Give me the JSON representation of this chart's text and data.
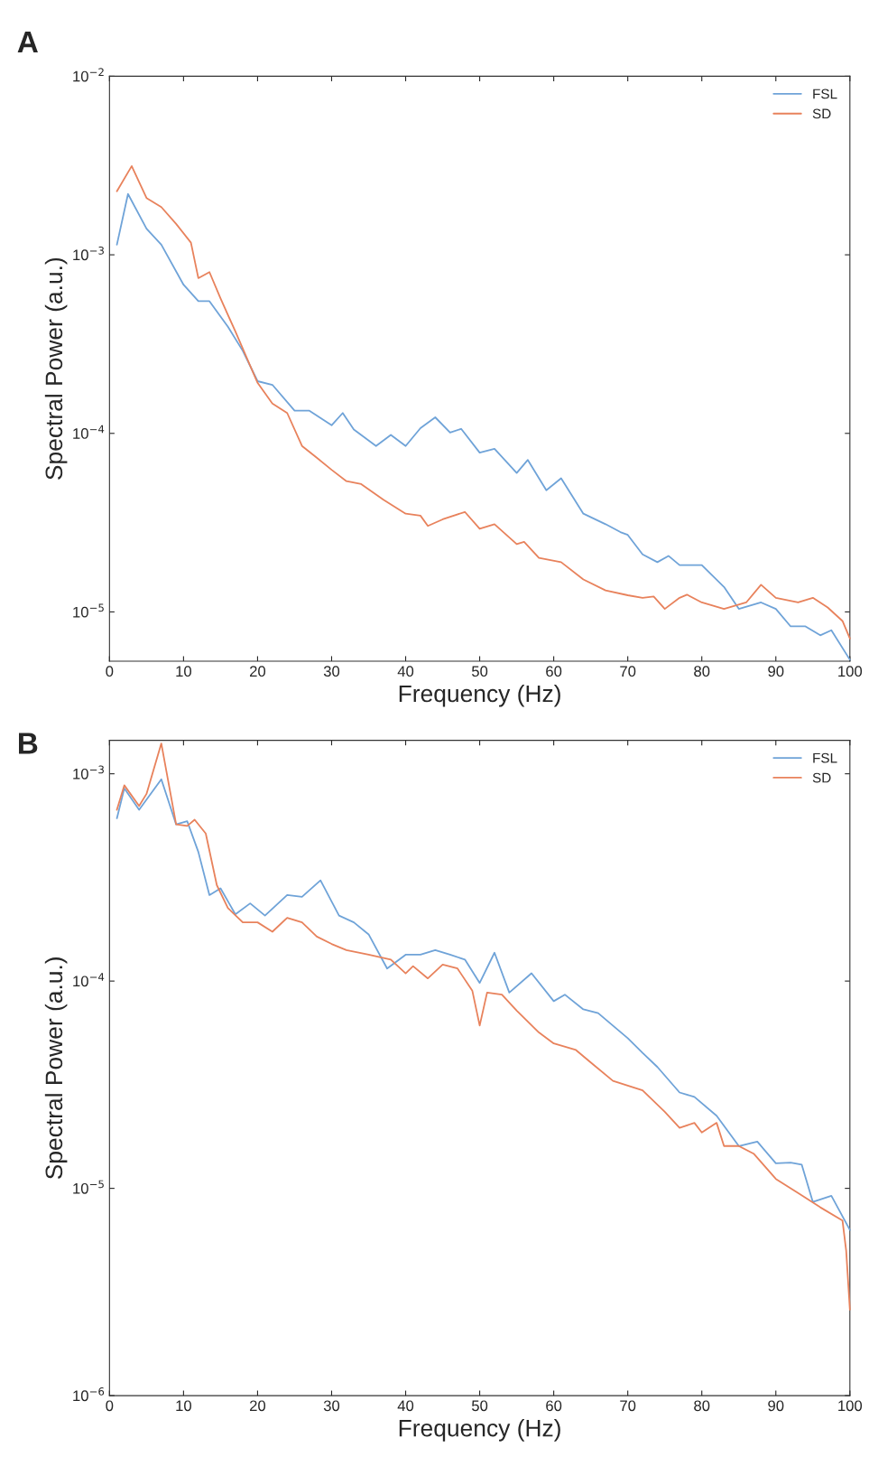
{
  "chart_data": [
    {
      "type": "line",
      "title": "A",
      "xlabel": "Frequency (Hz)",
      "ylabel": "Spectral Power (a.u.)",
      "log": "y",
      "grid": false,
      "legend": "top right",
      "xlim": [
        0,
        100
      ],
      "xticks": [
        0,
        10,
        20,
        30,
        40,
        50,
        60,
        70,
        80,
        90,
        100
      ],
      "ylim": [
        5.3e-06,
        0.01
      ],
      "yticks": [
        {
          "value": 1e-05,
          "label": "10$^{−5}$"
        },
        {
          "value": 0.0001,
          "label": "10$^{−4}$"
        },
        {
          "value": 0.001,
          "label": "10$^{−3}$"
        },
        {
          "value": 0.01,
          "label": "10$^{−2}$"
        }
      ],
      "series": [
        {
          "name": "FSL",
          "color": "#6fa3d8",
          "x": [
            1,
            2.5,
            5,
            7,
            10,
            12,
            13.5,
            16,
            18,
            20,
            22,
            25,
            27,
            30,
            31.5,
            33,
            36,
            38,
            40,
            42,
            44,
            46,
            47.5,
            50,
            52,
            55,
            56.5,
            59,
            61,
            64,
            67,
            69,
            70,
            72,
            74,
            75.5,
            77,
            80,
            83,
            85,
            88,
            90,
            92,
            94,
            96,
            97.5,
            100
          ],
          "values": [
            0.00114,
            0.00219,
            0.0014,
            0.00114,
            0.00068,
            0.00055,
            0.00055,
            0.000395,
            0.00029,
            0.000196,
            0.000187,
            0.000134,
            0.000134,
            0.000111,
            0.00013,
            0.000105,
            8.5e-05,
            9.8e-05,
            8.5e-05,
            0.000107,
            0.000123,
            0.000101,
            0.000106,
            7.8e-05,
            8.2e-05,
            6e-05,
            7.1e-05,
            4.8e-05,
            5.6e-05,
            3.55e-05,
            3.1e-05,
            2.8e-05,
            2.7e-05,
            2.1e-05,
            1.9e-05,
            2.06e-05,
            1.83e-05,
            1.83e-05,
            1.38e-05,
            1.04e-05,
            1.13e-05,
            1.04e-05,
            8.3e-06,
            8.3e-06,
            7.4e-06,
            7.9e-06,
            5.4e-06
          ]
        },
        {
          "name": "SD",
          "color": "#e8825c",
          "x": [
            1,
            3,
            5,
            7,
            9,
            11,
            12,
            13.5,
            15,
            17,
            20,
            22,
            24,
            26,
            28,
            30,
            32,
            34,
            37,
            40,
            42,
            43,
            45,
            48,
            50,
            52,
            55,
            56,
            58,
            61,
            64,
            67,
            70,
            72,
            73.5,
            75,
            77,
            78,
            80,
            83,
            86,
            88,
            90,
            93,
            95,
            97,
            99,
            100
          ],
          "values": [
            0.00227,
            0.00314,
            0.00208,
            0.00185,
            0.00149,
            0.00117,
            0.00074,
            0.0008,
            0.00057,
            0.000372,
            0.000192,
            0.000147,
            0.00013,
            8.5e-05,
            7.3e-05,
            6.25e-05,
            5.4e-05,
            5.2e-05,
            4.25e-05,
            3.55e-05,
            3.46e-05,
            3.03e-05,
            3.3e-05,
            3.63e-05,
            2.92e-05,
            3.1e-05,
            2.4e-05,
            2.47e-05,
            2.01e-05,
            1.9e-05,
            1.52e-05,
            1.32e-05,
            1.24e-05,
            1.2e-05,
            1.22e-05,
            1.04e-05,
            1.2e-05,
            1.25e-05,
            1.13e-05,
            1.04e-05,
            1.13e-05,
            1.42e-05,
            1.2e-05,
            1.13e-05,
            1.2e-05,
            1.06e-05,
            8.9e-06,
            7.1e-06
          ]
        }
      ]
    },
    {
      "type": "line",
      "title": "B",
      "xlabel": "Frequency (Hz)",
      "ylabel": "Spectral Power (a.u.)",
      "log": "y",
      "grid": false,
      "legend": "top right",
      "xlim": [
        0,
        100
      ],
      "xticks": [
        0,
        10,
        20,
        30,
        40,
        50,
        60,
        70,
        80,
        90,
        100
      ],
      "ylim": [
        1e-06,
        0.00145
      ],
      "yticks": [
        {
          "value": 1e-06,
          "label": "10$^{−6}$"
        },
        {
          "value": 1e-05,
          "label": "10$^{−5}$"
        },
        {
          "value": 0.0001,
          "label": "10$^{−4}$"
        },
        {
          "value": 0.001,
          "label": "10$^{−3}$"
        }
      ],
      "series": [
        {
          "name": "FSL",
          "color": "#6fa3d8",
          "x": [
            1,
            2,
            4,
            7,
            9,
            10.5,
            12,
            13.5,
            15,
            17,
            19,
            21,
            24,
            26,
            28.5,
            31,
            33,
            35,
            37.5,
            40,
            42,
            44,
            46,
            48,
            50,
            52,
            54,
            57,
            60,
            61.5,
            64,
            66,
            70,
            72,
            74,
            77,
            79,
            82,
            85,
            87.5,
            90,
            92,
            93.5,
            95,
            97.5,
            100
          ],
          "values": [
            0.00061,
            0.00085,
            0.00067,
            0.00094,
            0.00057,
            0.00059,
            0.00042,
            0.00026,
            0.00028,
            0.00021,
            0.000237,
            0.000207,
            0.00026,
            0.000255,
            0.000306,
            0.000207,
            0.000192,
            0.000168,
            0.000115,
            0.000134,
            0.000134,
            0.000141,
            0.000134,
            0.000127,
            9.8e-05,
            0.000137,
            8.8e-05,
            0.000109,
            8e-05,
            8.6e-05,
            7.3e-05,
            7e-05,
            5.3e-05,
            4.5e-05,
            3.85e-05,
            2.9e-05,
            2.76e-05,
            2.24e-05,
            1.6e-05,
            1.68e-05,
            1.32e-05,
            1.33e-05,
            1.3e-05,
            8.6e-06,
            9.2e-06,
            6.3e-06
          ]
        },
        {
          "name": "SD",
          "color": "#e8825c",
          "x": [
            1,
            2,
            4,
            5,
            7,
            9,
            10.5,
            11.5,
            13,
            14.5,
            16,
            18,
            20,
            22,
            24,
            26,
            28,
            30,
            32,
            35,
            38,
            40,
            41,
            43,
            45,
            47,
            49,
            50,
            51,
            53,
            55,
            58,
            60,
            63,
            65,
            68,
            70,
            72,
            75,
            77,
            79,
            80,
            82,
            83,
            85,
            87,
            90,
            93,
            94,
            96,
            99,
            99.5,
            100
          ],
          "values": [
            0.00067,
            0.00088,
            0.0007,
            0.0008,
            0.0014,
            0.00057,
            0.00056,
            0.0006,
            0.000515,
            0.00029,
            0.000225,
            0.000192,
            0.000192,
            0.000173,
            0.000202,
            0.000192,
            0.000164,
            0.000151,
            0.000141,
            0.000134,
            0.000127,
            0.000109,
            0.000118,
            0.000103,
            0.00012,
            0.000115,
            9e-05,
            6.1e-05,
            8.8e-05,
            8.6e-05,
            7.2e-05,
            5.65e-05,
            5e-05,
            4.65e-05,
            4.05e-05,
            3.3e-05,
            3.13e-05,
            2.97e-05,
            2.34e-05,
            1.96e-05,
            2.07e-05,
            1.86e-05,
            2.07e-05,
            1.6e-05,
            1.6e-05,
            1.47e-05,
            1.11e-05,
            9.5e-06,
            9e-06,
            8.1e-06,
            7e-06,
            5e-06,
            2.6e-06
          ]
        }
      ]
    }
  ]
}
